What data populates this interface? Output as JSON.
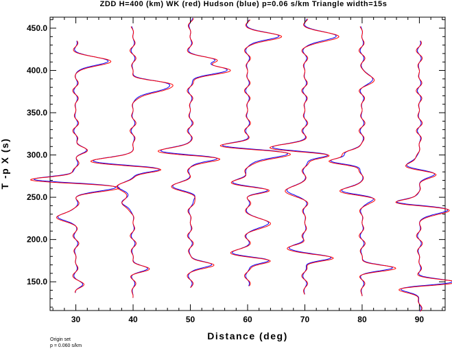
{
  "chart_data": {
    "type": "line",
    "title": "ZDD H=400 (km) WK (red) Hudson (blue) p=0.06 s/km Triangle width=15s",
    "xlabel": "Distance (deg)",
    "ylabel": "T -p X (s)",
    "xlim": [
      25.5,
      94.5
    ],
    "ylim": [
      116,
      463
    ],
    "x_ticks": [
      30,
      40,
      50,
      60,
      70,
      80,
      90
    ],
    "y_ticks": [
      150,
      200,
      250,
      300,
      350,
      400,
      450
    ],
    "x_tick_labels": [
      "30",
      "40",
      "50",
      "60",
      "70",
      "80",
      "90"
    ],
    "y_tick_labels": [
      "150.0",
      "200.0",
      "250.0",
      "300.0",
      "350.0",
      "400.0",
      "450.0"
    ],
    "grid": false,
    "series": [
      {
        "name": "WK",
        "color": "#ff0000"
      },
      {
        "name": "Hudson",
        "color": "#0000ff"
      }
    ],
    "traces": [
      {
        "distance": 30,
        "t_start": 137,
        "t_end": 435,
        "arrivals": [
          [
            146,
            1.0
          ],
          [
            226,
            -3.5
          ],
          [
            262,
            8.0
          ],
          [
            270,
            -10.0
          ],
          [
            305,
            2.0
          ],
          [
            410,
            6.0
          ]
        ]
      },
      {
        "distance": 40,
        "t_start": 131,
        "t_end": 452,
        "arrivals": [
          [
            165,
            2.5
          ],
          [
            243,
            -2.5
          ],
          [
            262,
            -3.0
          ],
          [
            283,
            6.0
          ],
          [
            292,
            -8.0
          ],
          [
            378,
            6.0
          ],
          [
            385,
            3.5
          ]
        ]
      },
      {
        "distance": 50,
        "t_start": 143,
        "t_end": 462,
        "arrivals": [
          [
            170,
            4.0
          ],
          [
            252,
            1.5
          ],
          [
            262,
            -3.5
          ],
          [
            296,
            6.0
          ],
          [
            304,
            -6.0
          ],
          [
            400,
            7.0
          ],
          [
            412,
            4.0
          ]
        ]
      },
      {
        "distance": 60,
        "t_start": 145,
        "t_end": 460,
        "arrivals": [
          [
            175,
            4.5
          ],
          [
            183,
            -3.0
          ],
          [
            219,
            4.0
          ],
          [
            258,
            4.0
          ],
          [
            267,
            -3.0
          ],
          [
            301,
            8.0
          ],
          [
            310,
            -6.0
          ],
          [
            440,
            6.0
          ]
        ]
      },
      {
        "distance": 70,
        "t_start": 135,
        "t_end": 461,
        "arrivals": [
          [
            178,
            5.0
          ],
          [
            190,
            -3.0
          ],
          [
            258,
            -3.5
          ],
          [
            300,
            5.5
          ],
          [
            308,
            -6.5
          ],
          [
            440,
            6.0
          ]
        ]
      },
      {
        "distance": 80,
        "t_start": 133,
        "t_end": 452,
        "arrivals": [
          [
            166,
            5.5
          ],
          [
            250,
            4.0
          ],
          [
            256,
            -5.0
          ],
          [
            292,
            -6.0
          ],
          [
            302,
            -3.0
          ],
          [
            390,
            2.0
          ]
        ]
      },
      {
        "distance": 90,
        "t_start": 115,
        "t_end": 435,
        "arrivals": [
          [
            149,
            7.0
          ],
          [
            142,
            -4.0
          ],
          [
            235,
            6.0
          ],
          [
            243,
            -6.0
          ],
          [
            278,
            3.5
          ],
          [
            287,
            -3.0
          ]
        ]
      }
    ]
  },
  "footer": {
    "line1": "Origin set",
    "line2": "p =  0.060 s/km"
  }
}
